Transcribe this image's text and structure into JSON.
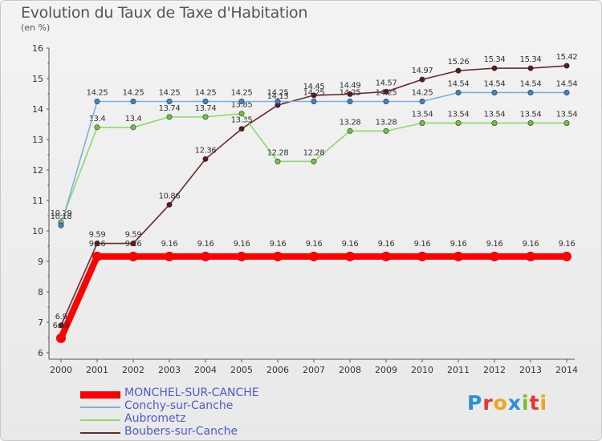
{
  "title": "Evolution du Taux de Taxe d'Habitation",
  "subtitle": "(en %)",
  "logo": {
    "letters": [
      "P",
      "r",
      "o",
      "x",
      "i",
      "t",
      "i"
    ],
    "colors": [
      "#2b8fd8",
      "#e8342a",
      "#f2a31c",
      "#2b8fd8",
      "#7cbb2a",
      "#e8342a",
      "#f2a31c"
    ]
  },
  "chart_data": {
    "type": "line",
    "x": [
      2000,
      2001,
      2002,
      2003,
      2004,
      2005,
      2006,
      2007,
      2008,
      2009,
      2010,
      2011,
      2012,
      2013,
      2014
    ],
    "ylim": [
      6,
      16
    ],
    "yticks": [
      6,
      7,
      8,
      9,
      10,
      11,
      12,
      13,
      14,
      15,
      16
    ],
    "grid": false,
    "legend_position": "bottom-left",
    "series": [
      {
        "name": "Boubers-sur-Canche",
        "color": "#6b2a2a",
        "point_color": "#5a1a1a",
        "values": [
          6.9,
          9.59,
          9.59,
          10.86,
          12.36,
          13.35,
          14.13,
          14.45,
          14.49,
          14.57,
          14.97,
          15.26,
          15.34,
          15.34,
          15.42
        ],
        "labels": [
          "6.9",
          "9.59",
          "9.59",
          "10.86",
          "12.36",
          "13.35",
          "14.13",
          "14.45",
          "14.49",
          "14.57",
          "14.97",
          "15.26",
          "15.34",
          "15.34",
          "15.42"
        ]
      },
      {
        "name": "Aubrometz",
        "color": "#8fd86a",
        "point_color": "#6cc43c",
        "values": [
          10.29,
          13.4,
          13.4,
          13.74,
          13.74,
          13.85,
          12.28,
          12.28,
          13.28,
          13.28,
          13.54,
          13.54,
          13.54,
          13.54,
          13.54
        ],
        "labels": [
          "10.29",
          "13.4",
          "13.4",
          "13.74",
          "13.74",
          "13.85",
          "12.28",
          "12.28",
          "13.28",
          "13.28",
          "13.54",
          "13.54",
          "13.54",
          "13.54",
          "13.54"
        ]
      },
      {
        "name": "Conchy-sur-Canche",
        "color": "#7fb0da",
        "point_color": "#3d83c8",
        "values": [
          10.18,
          14.25,
          14.25,
          14.25,
          14.25,
          14.25,
          14.25,
          14.25,
          14.25,
          14.25,
          14.25,
          14.54,
          14.54,
          14.54,
          14.54
        ],
        "labels": [
          "10.18",
          "14.25",
          "14.25",
          "14.25",
          "14.25",
          "14.25",
          "14.25",
          "14.25",
          "14.25",
          "14.25",
          "14.25",
          "14.54",
          "14.54",
          "14.54",
          "14.54"
        ]
      },
      {
        "name": "MONCHEL-SUR-CANCHE",
        "color": "#ff0000",
        "point_color": "#ff0000",
        "thick": true,
        "values": [
          6.48,
          9.16,
          9.16,
          9.16,
          9.16,
          9.16,
          9.16,
          9.16,
          9.16,
          9.16,
          9.16,
          9.16,
          9.16,
          9.16,
          9.16
        ],
        "labels": [
          "6.48",
          "9.16",
          "9.16",
          "9.16",
          "9.16",
          "9.16",
          "9.16",
          "9.16",
          "9.16",
          "9.16",
          "9.16",
          "9.16",
          "9.16",
          "9.16",
          "9.16"
        ]
      }
    ],
    "legend": [
      "MONCHEL-SUR-CANCHE",
      "Conchy-sur-Canche",
      "Aubrometz",
      "Boubers-sur-Canche"
    ]
  }
}
